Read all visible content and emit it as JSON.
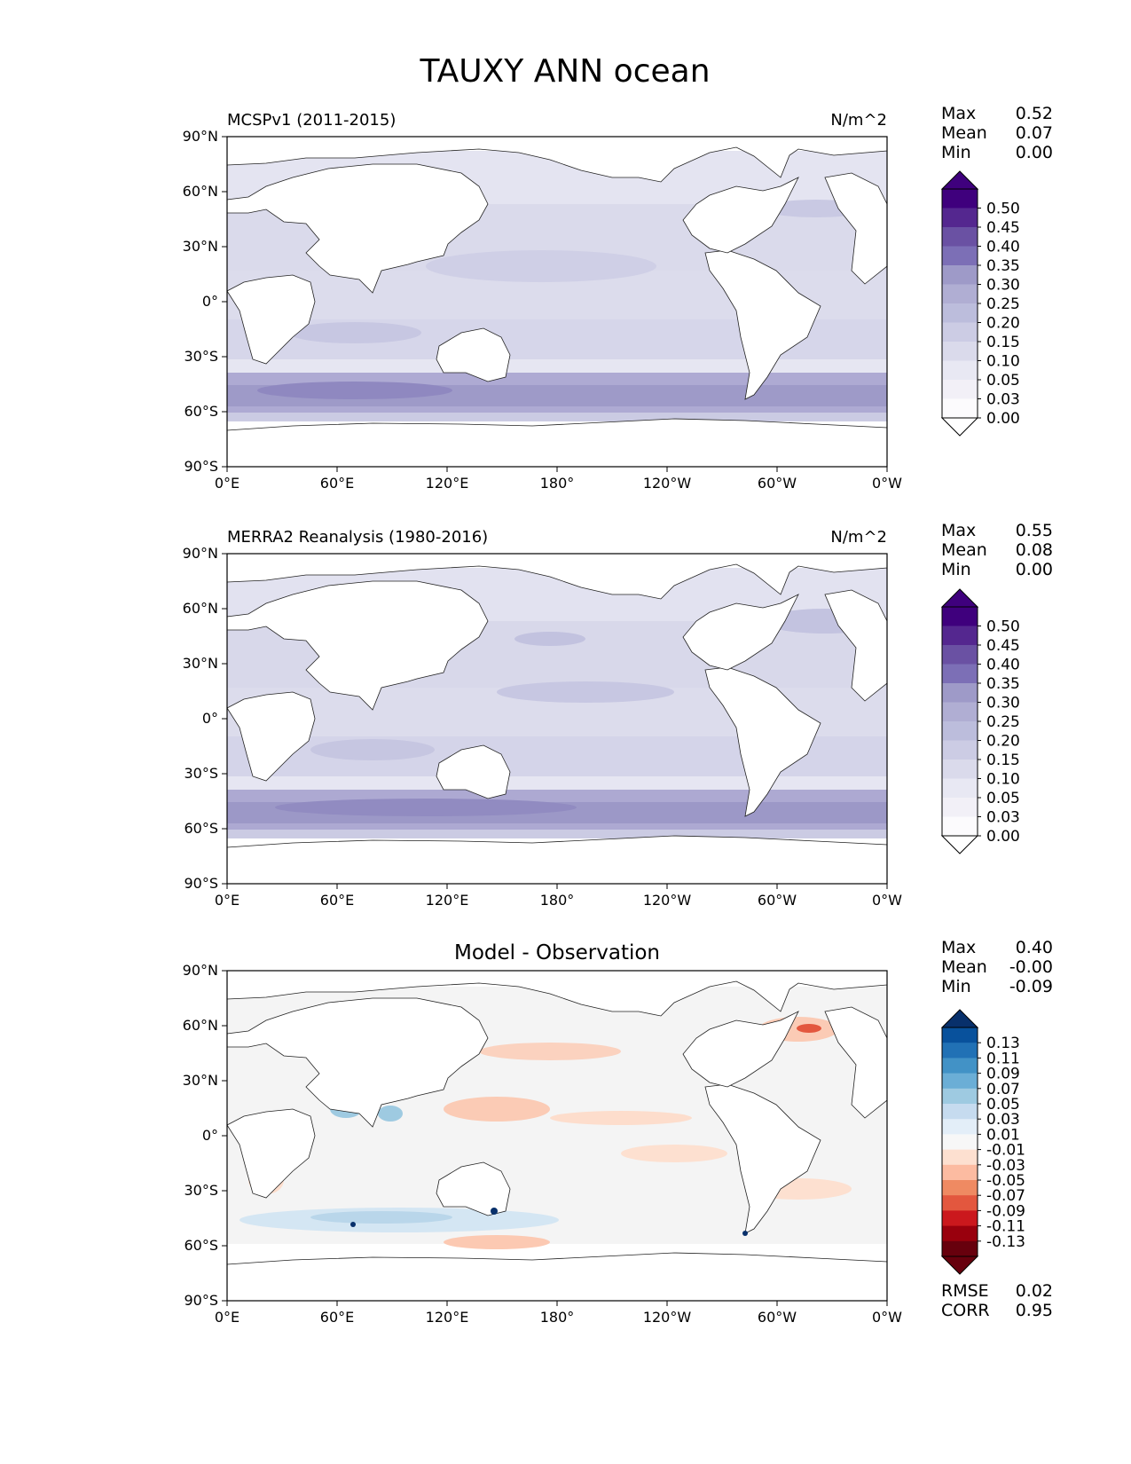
{
  "figure": {
    "title": "TAUXY ANN ocean"
  },
  "axes": {
    "lat_ticks": [
      "90°N",
      "60°N",
      "30°N",
      "0°",
      "30°S",
      "60°S",
      "90°S"
    ],
    "lon_ticks": [
      "0°E",
      "60°E",
      "120°E",
      "180°",
      "120°W",
      "60°W",
      "0°W"
    ]
  },
  "panels": [
    {
      "left_title": "MCSPv1 (2011-2015)",
      "right_title": "N/m^2",
      "stats": {
        "labels": [
          "Max",
          "Mean",
          "Min"
        ],
        "values": [
          "0.52",
          "0.07",
          "0.00"
        ]
      }
    },
    {
      "left_title": "MERRA2 Reanalysis (1980-2016)",
      "right_title": "N/m^2",
      "stats": {
        "labels": [
          "Max",
          "Mean",
          "Min"
        ],
        "values": [
          "0.55",
          "0.08",
          "0.00"
        ]
      }
    },
    {
      "center_title": "Model - Observation",
      "stats": {
        "labels": [
          "Max",
          "Mean",
          "Min"
        ],
        "values": [
          "0.40",
          "-0.00",
          "-0.09"
        ]
      },
      "metrics": {
        "labels": [
          "RMSE",
          "CORR"
        ],
        "values": [
          "0.02",
          "0.95"
        ]
      }
    }
  ],
  "colorbars": {
    "sequential": {
      "ticks": [
        "0.50",
        "0.45",
        "0.40",
        "0.35",
        "0.30",
        "0.25",
        "0.20",
        "0.15",
        "0.10",
        "0.05",
        "0.03",
        "0.00"
      ],
      "colors": [
        "#3f007d",
        "#54278f",
        "#6a51a3",
        "#7c6fb6",
        "#9e9ac8",
        "#b0aed3",
        "#bcbddc",
        "#cccce4",
        "#dadaeb",
        "#e8e8f3",
        "#f2f0f7",
        "#fcfbfd"
      ],
      "extend_max_color": "#3f007d",
      "extend_min_color": "#ffffff"
    },
    "diverging": {
      "ticks": [
        "0.13",
        "0.11",
        "0.09",
        "0.07",
        "0.05",
        "0.03",
        "0.01",
        "-0.01",
        "-0.03",
        "-0.05",
        "-0.07",
        "-0.09",
        "-0.11",
        "-0.13"
      ],
      "colors": [
        "#08519c",
        "#2171b5",
        "#4292c6",
        "#6baed6",
        "#9ecae1",
        "#c6dbef",
        "#e3eef8",
        "#f7f7f7",
        "#fde0d0",
        "#fcbba1",
        "#ef8a62",
        "#e3573e",
        "#cb181d",
        "#99000d",
        "#67000d"
      ],
      "extend_max_color": "#08306b",
      "extend_min_color": "#67000d"
    }
  },
  "chart_data": [
    {
      "type": "heatmap",
      "title": "MCSPv1 (2011-2015)",
      "variable": "TAUXY",
      "season": "ANN",
      "units": "N/m^2",
      "stats": {
        "max": 0.52,
        "mean": 0.07,
        "min": 0.0
      },
      "levels": [
        0.0,
        0.03,
        0.05,
        0.1,
        0.15,
        0.2,
        0.25,
        0.3,
        0.35,
        0.4,
        0.45,
        0.5
      ]
    },
    {
      "type": "heatmap",
      "title": "MERRA2 Reanalysis (1980-2016)",
      "variable": "TAUXY",
      "season": "ANN",
      "units": "N/m^2",
      "stats": {
        "max": 0.55,
        "mean": 0.08,
        "min": 0.0
      },
      "levels": [
        0.0,
        0.03,
        0.05,
        0.1,
        0.15,
        0.2,
        0.25,
        0.3,
        0.35,
        0.4,
        0.45,
        0.5
      ]
    },
    {
      "type": "heatmap",
      "title": "Model - Observation",
      "stats": {
        "max": 0.4,
        "mean": -0.0,
        "min": -0.09
      },
      "rmse": 0.02,
      "corr": 0.95,
      "levels": [
        -0.13,
        -0.11,
        -0.09,
        -0.07,
        -0.05,
        -0.03,
        -0.01,
        0.01,
        0.03,
        0.05,
        0.07,
        0.09,
        0.11,
        0.13
      ]
    }
  ]
}
